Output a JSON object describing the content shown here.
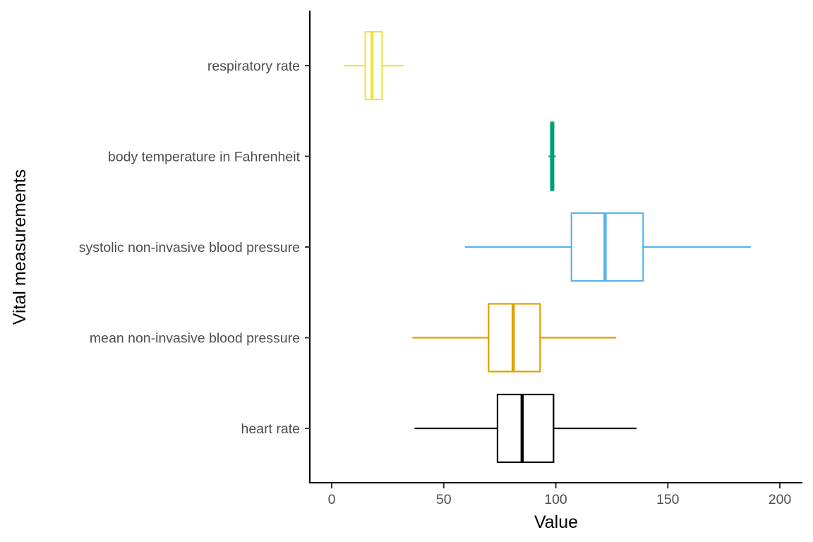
{
  "chart_data": {
    "type": "boxplot",
    "orientation": "horizontal",
    "xlabel": "Value",
    "ylabel": "Vital measurements",
    "xlim": [
      -10,
      210
    ],
    "xticks": [
      0,
      50,
      100,
      150,
      200
    ],
    "grid": false,
    "legend": "none",
    "categories": [
      "respiratory rate",
      "body temperature in Fahrenheit",
      "systolic non-invasive blood pressure",
      "mean non-invasive blood pressure",
      "heart rate"
    ],
    "series": [
      {
        "category": "respiratory rate",
        "color": "#F0E442",
        "whisker_low": 5.5,
        "q1": 15,
        "median": 18,
        "q3": 22.5,
        "whisker_high": 32
      },
      {
        "category": "body temperature in Fahrenheit",
        "color": "#009E73",
        "whisker_low": 96.8,
        "q1": 97.8,
        "median": 98.4,
        "q3": 99,
        "whisker_high": 100
      },
      {
        "category": "systolic non-invasive blood pressure",
        "color": "#56B4E9",
        "whisker_low": 59.5,
        "q1": 107,
        "median": 122,
        "q3": 139,
        "whisker_high": 187
      },
      {
        "category": "mean non-invasive blood pressure",
        "color": "#E69F00",
        "whisker_low": 36,
        "q1": 70,
        "median": 81,
        "q3": 93,
        "whisker_high": 127
      },
      {
        "category": "heart rate",
        "color": "#000000",
        "whisker_low": 37,
        "q1": 74,
        "median": 85,
        "q3": 99,
        "whisker_high": 136
      }
    ]
  }
}
